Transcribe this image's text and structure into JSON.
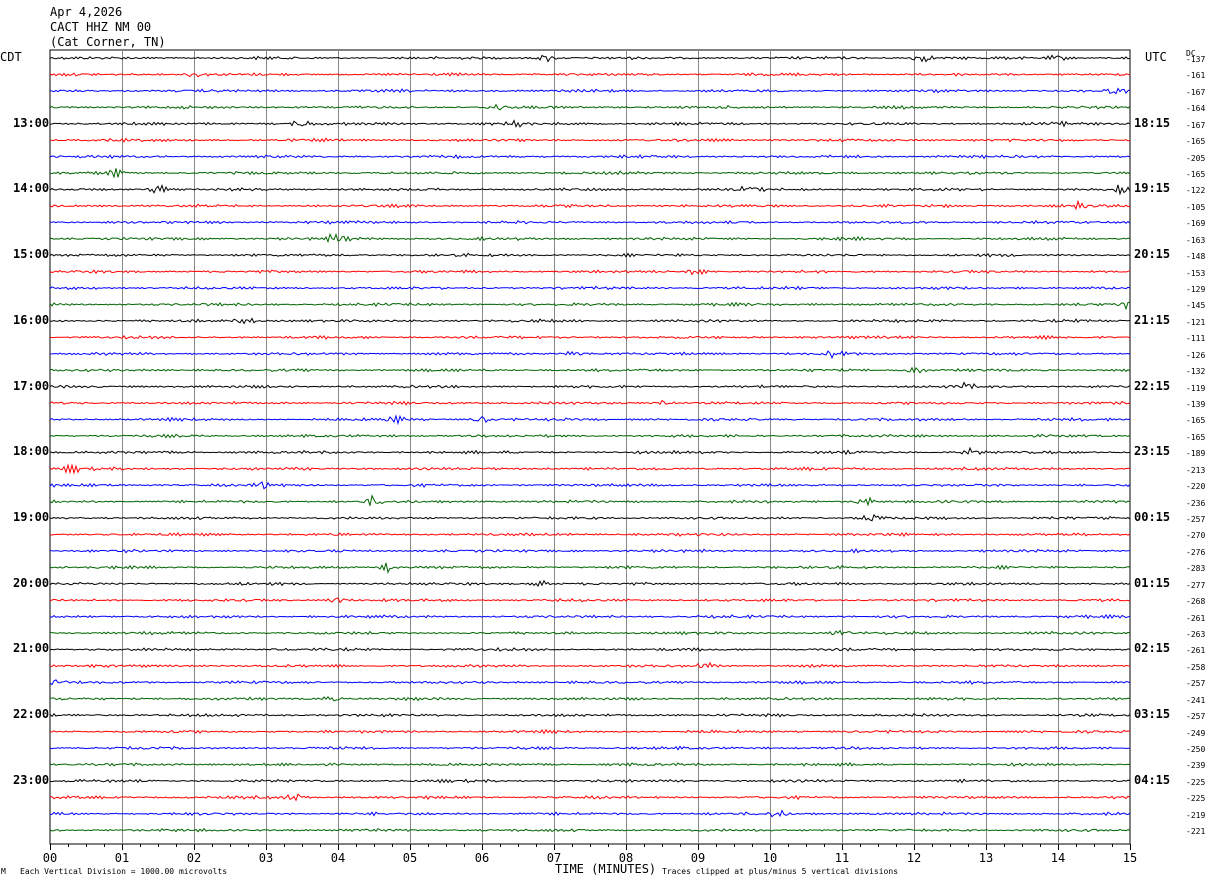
{
  "header": {
    "date": "Apr 4,2026",
    "station": "CACT HHZ NM 00",
    "location": "(Cat Corner, TN)"
  },
  "left_tz": "CDT",
  "right_tz": "UTC",
  "dc_label": "DC",
  "footer": {
    "scale_note": "Each Vertical Division = 1000.00 microvolts",
    "xlabel": "TIME (MINUTES)",
    "clip_note": "Traces clipped at plus/minus 5 vertical divisions",
    "corner_mark": "M"
  },
  "chart_data": {
    "type": "line",
    "xlabel": "TIME (MINUTES)",
    "xlim": [
      0,
      15
    ],
    "x_ticks": [
      "00",
      "01",
      "02",
      "03",
      "04",
      "05",
      "06",
      "07",
      "08",
      "09",
      "10",
      "11",
      "12",
      "13",
      "14",
      "15"
    ],
    "left_hour_labels": [
      {
        "row": 4,
        "label": "13:00"
      },
      {
        "row": 8,
        "label": "14:00"
      },
      {
        "row": 12,
        "label": "15:00"
      },
      {
        "row": 16,
        "label": "16:00"
      },
      {
        "row": 20,
        "label": "17:00"
      },
      {
        "row": 24,
        "label": "18:00"
      },
      {
        "row": 28,
        "label": "19:00"
      },
      {
        "row": 32,
        "label": "20:00"
      },
      {
        "row": 36,
        "label": "21:00"
      },
      {
        "row": 40,
        "label": "22:00"
      },
      {
        "row": 44,
        "label": "23:00"
      }
    ],
    "right_hour_labels": [
      {
        "row": 4,
        "label": "18:15"
      },
      {
        "row": 8,
        "label": "19:15"
      },
      {
        "row": 12,
        "label": "20:15"
      },
      {
        "row": 16,
        "label": "21:15"
      },
      {
        "row": 20,
        "label": "22:15"
      },
      {
        "row": 24,
        "label": "23:15"
      },
      {
        "row": 28,
        "label": "00:15"
      },
      {
        "row": 32,
        "label": "01:15"
      },
      {
        "row": 36,
        "label": "02:15"
      },
      {
        "row": 40,
        "label": "03:15"
      },
      {
        "row": 44,
        "label": "04:15"
      }
    ],
    "trace_colors": [
      "#000000",
      "#ff0000",
      "#0000ff",
      "#006400"
    ],
    "dc_offsets": [
      -137,
      -161,
      -167,
      -164,
      -167,
      -165,
      -205,
      -165,
      -122,
      -105,
      -169,
      -163,
      -148,
      -153,
      -129,
      -145,
      -121,
      -111,
      -126,
      -132,
      -119,
      -139,
      -165,
      -165,
      -189,
      -213,
      -220,
      -236,
      -257,
      -270,
      -276,
      -283,
      -277,
      -268,
      -261,
      -263,
      -261,
      -258,
      -257,
      -241,
      -257,
      -249,
      -250,
      -239,
      -225,
      -225,
      -219,
      -221
    ],
    "events": [
      {
        "row": 0,
        "minute": 6.9,
        "amp": 2.5
      },
      {
        "row": 0,
        "minute": 12.1,
        "amp": 3.5
      },
      {
        "row": 0,
        "minute": 14.0,
        "amp": 2.0
      },
      {
        "row": 1,
        "minute": 2.0,
        "amp": 2.0
      },
      {
        "row": 2,
        "minute": 14.8,
        "amp": 2.0
      },
      {
        "row": 3,
        "minute": 6.2,
        "amp": 3.0
      },
      {
        "row": 4,
        "minute": 3.5,
        "amp": 2.0
      },
      {
        "row": 4,
        "minute": 6.5,
        "amp": 2.0
      },
      {
        "row": 4,
        "minute": 14.0,
        "amp": 2.0
      },
      {
        "row": 7,
        "minute": 0.9,
        "amp": 2.5
      },
      {
        "row": 8,
        "minute": 1.5,
        "amp": 3.0
      },
      {
        "row": 8,
        "minute": 9.7,
        "amp": 2.5
      },
      {
        "row": 8,
        "minute": 14.9,
        "amp": 3.0
      },
      {
        "row": 9,
        "minute": 14.3,
        "amp": 2.0
      },
      {
        "row": 11,
        "minute": 4.0,
        "amp": 4.0
      },
      {
        "row": 13,
        "minute": 9.0,
        "amp": 2.5
      },
      {
        "row": 15,
        "minute": 15.0,
        "amp": 4.0
      },
      {
        "row": 16,
        "minute": 2.7,
        "amp": 2.5
      },
      {
        "row": 18,
        "minute": 7.3,
        "amp": 2.0
      },
      {
        "row": 18,
        "minute": 10.9,
        "amp": 2.5
      },
      {
        "row": 19,
        "minute": 12.0,
        "amp": 3.0
      },
      {
        "row": 20,
        "minute": 12.7,
        "amp": 2.0
      },
      {
        "row": 21,
        "minute": 8.5,
        "amp": 2.5
      },
      {
        "row": 22,
        "minute": 4.8,
        "amp": 2.0
      },
      {
        "row": 22,
        "minute": 6.0,
        "amp": 2.0
      },
      {
        "row": 24,
        "minute": 12.8,
        "amp": 2.5
      },
      {
        "row": 25,
        "minute": 0.3,
        "amp": 2.0
      },
      {
        "row": 26,
        "minute": 3.0,
        "amp": 3.0
      },
      {
        "row": 27,
        "minute": 4.5,
        "amp": 3.0
      },
      {
        "row": 27,
        "minute": 11.3,
        "amp": 2.5
      },
      {
        "row": 28,
        "minute": 11.4,
        "amp": 2.5
      },
      {
        "row": 31,
        "minute": 4.7,
        "amp": 3.5
      },
      {
        "row": 32,
        "minute": 6.8,
        "amp": 2.0
      },
      {
        "row": 33,
        "minute": 4.0,
        "amp": 2.5
      },
      {
        "row": 35,
        "minute": 11.0,
        "amp": 2.0
      },
      {
        "row": 37,
        "minute": 9.1,
        "amp": 2.5
      },
      {
        "row": 38,
        "minute": 0.1,
        "amp": 2.0
      },
      {
        "row": 39,
        "minute": 3.9,
        "amp": 2.0
      },
      {
        "row": 45,
        "minute": 3.4,
        "amp": 2.5
      },
      {
        "row": 46,
        "minute": 10.1,
        "amp": 2.5
      }
    ]
  }
}
